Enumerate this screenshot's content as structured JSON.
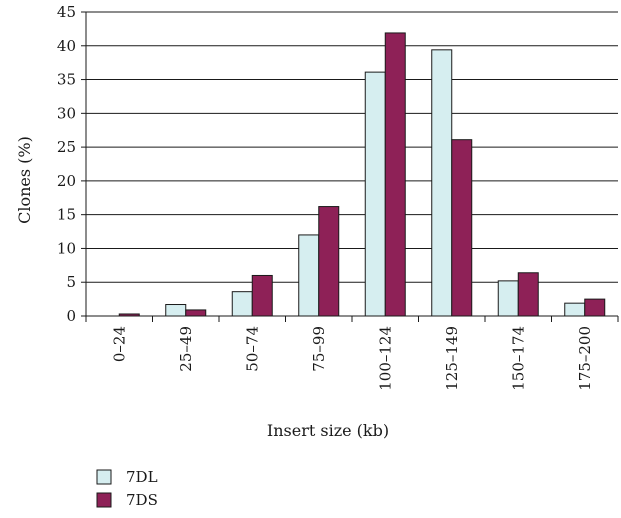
{
  "chart_data": {
    "type": "bar",
    "title": "",
    "xlabel": "Insert size (kb)",
    "ylabel": "Clones (%)",
    "ylim": [
      0,
      45
    ],
    "yticks": [
      0,
      5,
      10,
      15,
      20,
      25,
      30,
      35,
      40,
      45
    ],
    "grid": true,
    "legend_position": "bottom-left",
    "categories": [
      "0–24",
      "25–49",
      "50–74",
      "75–99",
      "100–124",
      "125–149",
      "150–174",
      "175–200"
    ],
    "series": [
      {
        "name": "7DL",
        "color": "#d6eef0",
        "values": [
          0,
          1.7,
          3.6,
          12.0,
          36.1,
          39.4,
          5.2,
          1.9
        ]
      },
      {
        "name": "7DS",
        "color": "#8e2157",
        "values": [
          0.3,
          0.9,
          6.0,
          16.2,
          41.9,
          26.1,
          6.4,
          2.5
        ]
      }
    ]
  }
}
